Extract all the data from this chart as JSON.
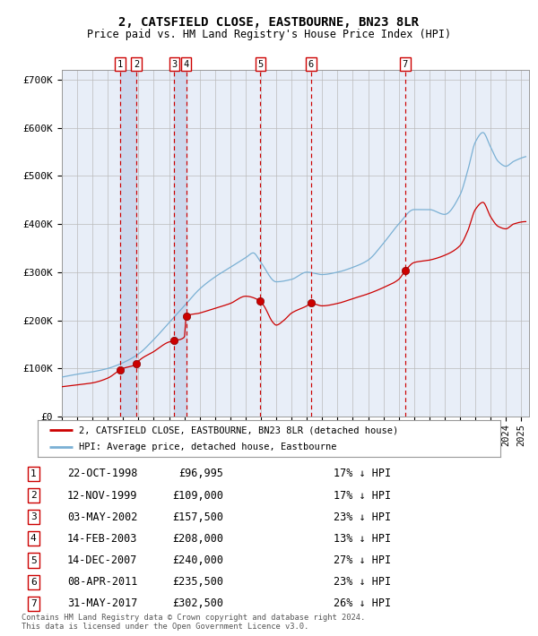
{
  "title": "2, CATSFIELD CLOSE, EASTBOURNE, BN23 8LR",
  "subtitle": "Price paid vs. HM Land Registry's House Price Index (HPI)",
  "footer1": "Contains HM Land Registry data © Crown copyright and database right 2024.",
  "footer2": "This data is licensed under the Open Government Licence v3.0.",
  "legend_label_red": "2, CATSFIELD CLOSE, EASTBOURNE, BN23 8LR (detached house)",
  "legend_label_blue": "HPI: Average price, detached house, Eastbourne",
  "transactions": [
    {
      "id": 1,
      "date": "22-OCT-1998",
      "price": 96995,
      "pct": "17% ↓ HPI",
      "year": 1998.81
    },
    {
      "id": 2,
      "date": "12-NOV-1999",
      "price": 109000,
      "pct": "17% ↓ HPI",
      "year": 1999.87
    },
    {
      "id": 3,
      "date": "03-MAY-2002",
      "price": 157500,
      "pct": "23% ↓ HPI",
      "year": 2002.34
    },
    {
      "id": 4,
      "date": "14-FEB-2003",
      "price": 208000,
      "pct": "13% ↓ HPI",
      "year": 2003.12
    },
    {
      "id": 5,
      "date": "14-DEC-2007",
      "price": 240000,
      "pct": "27% ↓ HPI",
      "year": 2007.96
    },
    {
      "id": 6,
      "date": "08-APR-2011",
      "price": 235500,
      "pct": "23% ↓ HPI",
      "year": 2011.27
    },
    {
      "id": 7,
      "date": "31-MAY-2017",
      "price": 302500,
      "pct": "26% ↓ HPI",
      "year": 2017.42
    }
  ],
  "ylim": [
    0,
    720000
  ],
  "xlim_start": 1995.0,
  "xlim_end": 2025.5,
  "yticks": [
    0,
    100000,
    200000,
    300000,
    400000,
    500000,
    600000,
    700000
  ],
  "ytick_labels": [
    "£0",
    "£100K",
    "£200K",
    "£300K",
    "£400K",
    "£500K",
    "£600K",
    "£700K"
  ],
  "red_color": "#cc0000",
  "blue_color": "#7ab0d4",
  "background_color": "#e8eef8",
  "grid_color": "#bbbbbb",
  "vline_color": "#cc0000",
  "vband_color": "#cdd8ec",
  "title_fontsize": 10,
  "subtitle_fontsize": 8.5
}
